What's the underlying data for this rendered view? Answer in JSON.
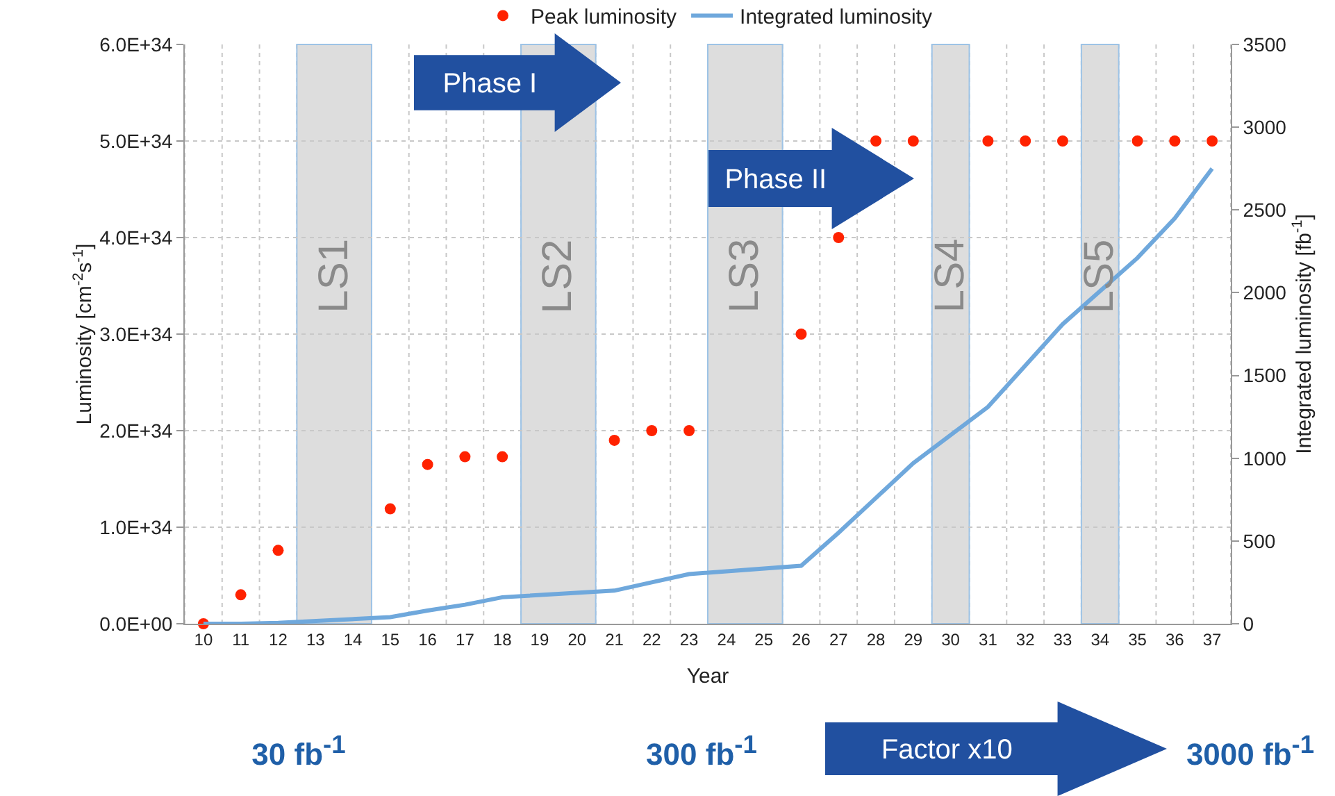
{
  "chart_data": {
    "type": "scatter",
    "xlabel": "Year",
    "ylabel": "Luminosity [cm$^{-2}$s$^{-1}$]",
    "y2label": "Integrated luminosity [fb$^{-1}$]",
    "categories": [
      "10",
      "11",
      "12",
      "13",
      "14",
      "15",
      "16",
      "17",
      "18",
      "19",
      "20",
      "21",
      "22",
      "23",
      "24",
      "25",
      "26",
      "27",
      "28",
      "29",
      "30",
      "31",
      "32",
      "33",
      "34",
      "35",
      "36",
      "37"
    ],
    "series": [
      {
        "name": "Peak luminosity",
        "marker": "circle",
        "color": "#ff2200",
        "values": [
          0,
          3e+33,
          7.6e+33,
          null,
          null,
          1.19e+34,
          1.65e+34,
          1.73e+34,
          1.73e+34,
          null,
          null,
          1.9e+34,
          2e+34,
          2e+34,
          null,
          null,
          3e+34,
          4e+34,
          5e+34,
          5e+34,
          null,
          5e+34,
          5e+34,
          5e+34,
          null,
          5e+34,
          5e+34,
          5e+34
        ]
      },
      {
        "name": "Integrated luminosity",
        "type": "line",
        "axis": "y2",
        "line_style": "solid",
        "color": "#6fa8dc",
        "values": [
          0,
          0,
          5,
          null,
          null,
          40,
          80,
          115,
          160,
          null,
          null,
          200,
          250,
          300,
          null,
          null,
          350,
          550,
          760,
          970,
          null,
          1310,
          1560,
          1810,
          null,
          2210,
          2450,
          2750
        ]
      }
    ],
    "ylim": [
      0,
      6e+34
    ],
    "yticks": [
      {
        "value": 0,
        "label": "0.0E+00"
      },
      {
        "value": 1e+34,
        "label": "1.0E+34"
      },
      {
        "value": 2e+34,
        "label": "2.0E+34"
      },
      {
        "value": 3e+34,
        "label": "3.0E+34"
      },
      {
        "value": 4e+34,
        "label": "4.0E+34"
      },
      {
        "value": 5e+34,
        "label": "5.0E+34"
      },
      {
        "value": 6e+34,
        "label": "6.0E+34"
      }
    ],
    "y2lim": [
      0,
      3500
    ],
    "y2ticks": [
      0,
      500,
      1000,
      1500,
      2000,
      2500,
      3000,
      3500
    ],
    "bands": [
      {
        "axis": "x",
        "from": "13",
        "to": "14",
        "label": "LS1",
        "color": "#dddddd"
      },
      {
        "axis": "x",
        "from": "19",
        "to": "20",
        "label": "LS2",
        "color": "#dddddd"
      },
      {
        "axis": "x",
        "from": "24",
        "to": "25",
        "label": "LS3",
        "color": "#dddddd"
      },
      {
        "axis": "x",
        "from": "30",
        "to": "30",
        "label": "LS4",
        "color": "#dddddd"
      },
      {
        "axis": "x",
        "from": "34",
        "to": "34",
        "label": "LS5",
        "color": "#dddddd"
      }
    ],
    "annotations": [
      "Phase I",
      "Phase II",
      "30 fb$^{-1}$",
      "300 fb$^{-1}$",
      "Factor x10",
      "3000 fb$^{-1}$"
    ],
    "grid": true,
    "legend": "top"
  }
}
